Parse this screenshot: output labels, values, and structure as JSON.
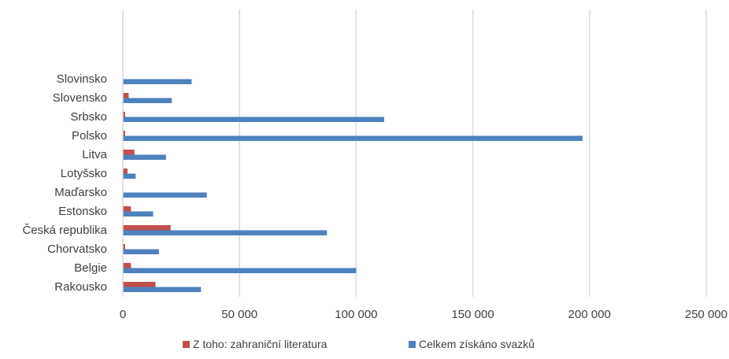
{
  "chart_data": {
    "type": "bar",
    "orientation": "horizontal",
    "categories": [
      "Rakousko",
      "Belgie",
      "Chorvatsko",
      "Česká republika",
      "Estonsko",
      "Maďarsko",
      "Lotyšsko",
      "Litva",
      "Polsko",
      "Srbsko",
      "Slovensko",
      "Slovinsko"
    ],
    "series": [
      {
        "name": "Z toho: zahraniční literatura",
        "color": "#C0504D",
        "values": [
          14000,
          3500,
          1000,
          20500,
          3500,
          0,
          2000,
          5000,
          1000,
          1000,
          2500,
          0
        ]
      },
      {
        "name": "Celkem získáno svazků",
        "color": "#4F81BD",
        "values": [
          33500,
          100000,
          15500,
          87500,
          13000,
          36000,
          5500,
          18500,
          197000,
          112000,
          21000,
          29500
        ]
      }
    ],
    "xlim": [
      0,
      250000
    ],
    "xticks": [
      0,
      50000,
      100000,
      150000,
      200000,
      250000
    ],
    "xtick_labels": [
      "0",
      "50 000",
      "100 000",
      "150 000",
      "200 000",
      "250 000"
    ],
    "grid": true,
    "legend_position": "bottom",
    "title": "",
    "xlabel": "",
    "ylabel": ""
  }
}
